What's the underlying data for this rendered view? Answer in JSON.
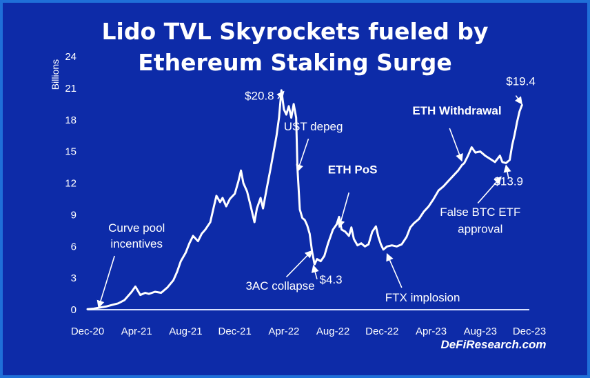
{
  "chart_data": {
    "type": "line",
    "title_lines": [
      "Lido TVL Skyrockets fueled by",
      "Ethereum Staking Surge"
    ],
    "ylabel": "Billions",
    "ylim": [
      0,
      24
    ],
    "yticks": [
      0,
      3,
      6,
      9,
      12,
      15,
      18,
      21,
      24
    ],
    "xticks": [
      "Dec-20",
      "Apr-21",
      "Aug-21",
      "Dec-21",
      "Apr-22",
      "Aug-22",
      "Dec-22",
      "Apr-23",
      "Aug-23",
      "Dec-23"
    ],
    "xlim": [
      0,
      36
    ],
    "grid": false,
    "series": [
      {
        "color": "#ffffff",
        "points": [
          [
            0.0,
            0.05
          ],
          [
            0.5,
            0.1
          ],
          [
            1.0,
            0.2
          ],
          [
            1.5,
            0.3
          ],
          [
            2.0,
            0.45
          ],
          [
            2.5,
            0.6
          ],
          [
            3.0,
            0.9
          ],
          [
            3.3,
            1.3
          ],
          [
            3.6,
            1.7
          ],
          [
            3.9,
            2.2
          ],
          [
            4.1,
            1.8
          ],
          [
            4.3,
            1.4
          ],
          [
            4.7,
            1.6
          ],
          [
            5.0,
            1.5
          ],
          [
            5.5,
            1.7
          ],
          [
            6.0,
            1.6
          ],
          [
            6.5,
            2.1
          ],
          [
            7.0,
            2.8
          ],
          [
            7.3,
            3.6
          ],
          [
            7.6,
            4.6
          ],
          [
            8.0,
            5.4
          ],
          [
            8.3,
            6.3
          ],
          [
            8.6,
            7.0
          ],
          [
            9.0,
            6.5
          ],
          [
            9.3,
            7.2
          ],
          [
            9.6,
            7.6
          ],
          [
            10.0,
            8.3
          ],
          [
            10.3,
            9.8
          ],
          [
            10.5,
            10.8
          ],
          [
            10.8,
            10.2
          ],
          [
            11.0,
            10.6
          ],
          [
            11.3,
            9.8
          ],
          [
            11.6,
            10.5
          ],
          [
            12.0,
            11.0
          ],
          [
            12.3,
            12.2
          ],
          [
            12.5,
            13.2
          ],
          [
            12.7,
            12.0
          ],
          [
            13.0,
            11.2
          ],
          [
            13.3,
            9.8
          ],
          [
            13.6,
            8.3
          ],
          [
            13.8,
            9.6
          ],
          [
            14.1,
            10.6
          ],
          [
            14.3,
            9.6
          ],
          [
            14.6,
            11.5
          ],
          [
            14.9,
            13.3
          ],
          [
            15.2,
            15.2
          ],
          [
            15.4,
            16.5
          ],
          [
            15.6,
            18.2
          ],
          [
            15.8,
            20.8
          ],
          [
            16.0,
            19.0
          ],
          [
            16.2,
            18.5
          ],
          [
            16.4,
            19.3
          ],
          [
            16.6,
            18.2
          ],
          [
            16.8,
            19.5
          ],
          [
            17.0,
            18.2
          ],
          [
            17.1,
            13.5
          ],
          [
            17.3,
            9.5
          ],
          [
            17.5,
            8.7
          ],
          [
            17.7,
            8.5
          ],
          [
            17.9,
            8.0
          ],
          [
            18.1,
            7.2
          ],
          [
            18.3,
            5.5
          ],
          [
            18.5,
            4.3
          ],
          [
            18.7,
            4.8
          ],
          [
            19.0,
            4.6
          ],
          [
            19.3,
            5.1
          ],
          [
            19.6,
            6.3
          ],
          [
            20.0,
            7.6
          ],
          [
            20.3,
            8.1
          ],
          [
            20.5,
            8.8
          ],
          [
            20.7,
            7.6
          ],
          [
            21.0,
            7.4
          ],
          [
            21.3,
            7.0
          ],
          [
            21.5,
            7.8
          ],
          [
            21.7,
            6.7
          ],
          [
            22.0,
            6.1
          ],
          [
            22.3,
            6.3
          ],
          [
            22.6,
            6.0
          ],
          [
            22.9,
            6.2
          ],
          [
            23.2,
            7.4
          ],
          [
            23.5,
            7.9
          ],
          [
            23.7,
            6.9
          ],
          [
            23.9,
            6.2
          ],
          [
            24.1,
            5.7
          ],
          [
            24.4,
            6.0
          ],
          [
            24.8,
            6.1
          ],
          [
            25.2,
            6.0
          ],
          [
            25.6,
            6.2
          ],
          [
            26.0,
            6.9
          ],
          [
            26.3,
            7.8
          ],
          [
            26.6,
            8.2
          ],
          [
            27.0,
            8.6
          ],
          [
            27.4,
            9.3
          ],
          [
            27.8,
            9.8
          ],
          [
            28.2,
            10.5
          ],
          [
            28.6,
            11.3
          ],
          [
            29.0,
            11.7
          ],
          [
            29.4,
            12.2
          ],
          [
            29.8,
            12.7
          ],
          [
            30.2,
            13.2
          ],
          [
            30.5,
            13.7
          ],
          [
            30.7,
            13.9
          ],
          [
            31.0,
            14.6
          ],
          [
            31.3,
            15.4
          ],
          [
            31.6,
            14.9
          ],
          [
            32.0,
            15.0
          ],
          [
            32.4,
            14.6
          ],
          [
            32.8,
            14.3
          ],
          [
            33.2,
            14.0
          ],
          [
            33.6,
            14.6
          ],
          [
            33.8,
            14.0
          ],
          [
            34.1,
            13.9
          ],
          [
            34.4,
            14.2
          ],
          [
            34.6,
            15.6
          ],
          [
            34.8,
            16.6
          ],
          [
            35.0,
            17.8
          ],
          [
            35.2,
            18.8
          ],
          [
            35.4,
            19.4
          ]
        ]
      }
    ],
    "annotations": [
      {
        "text": "Curve pool",
        "x": 4.0,
        "y": 7.4,
        "bold": false,
        "anchor": "middle"
      },
      {
        "text": "incentives",
        "x": 4.0,
        "y": 5.9,
        "bold": false,
        "anchor": "middle"
      },
      {
        "text": "$20.8",
        "x": 15.2,
        "y": 19.9,
        "bold": false,
        "anchor": "end"
      },
      {
        "text": "UST depeg",
        "x": 18.4,
        "y": 17.0,
        "bold": false,
        "anchor": "middle"
      },
      {
        "text": "ETH PoS",
        "x": 21.6,
        "y": 12.9,
        "bold": true,
        "anchor": "middle"
      },
      {
        "text": "3AC collapse",
        "x": 15.7,
        "y": 1.9,
        "bold": false,
        "anchor": "middle"
      },
      {
        "text": "$4.3",
        "x": 18.9,
        "y": 2.5,
        "bold": false,
        "anchor": "start"
      },
      {
        "text": "FTX implosion",
        "x": 27.3,
        "y": 0.8,
        "bold": false,
        "anchor": "middle"
      },
      {
        "text": "ETH Withdrawal",
        "x": 30.1,
        "y": 18.5,
        "bold": true,
        "anchor": "middle"
      },
      {
        "text": "$19.4",
        "x": 35.3,
        "y": 21.3,
        "bold": false,
        "anchor": "middle"
      },
      {
        "text": "$13.9",
        "x": 34.3,
        "y": 11.8,
        "bold": false,
        "anchor": "middle"
      },
      {
        "text": "False BTC ETF",
        "x": 32.0,
        "y": 8.9,
        "bold": false,
        "anchor": "middle"
      },
      {
        "text": "approval",
        "x": 32.0,
        "y": 7.3,
        "bold": false,
        "anchor": "middle"
      }
    ],
    "arrows": [
      {
        "from": [
          2.2,
          5.1
        ],
        "to": [
          0.9,
          0.2
        ]
      },
      {
        "from": [
          15.5,
          20.0
        ],
        "to": [
          16.0,
          20.7
        ]
      },
      {
        "from": [
          18.0,
          16.2
        ],
        "to": [
          17.1,
          13.1
        ]
      },
      {
        "from": [
          16.2,
          3.1
        ],
        "to": [
          18.3,
          5.6
        ]
      },
      {
        "from": [
          18.7,
          2.9
        ],
        "to": [
          18.4,
          4.2
        ]
      },
      {
        "from": [
          21.3,
          11.1
        ],
        "to": [
          20.5,
          7.8
        ]
      },
      {
        "from": [
          25.6,
          2.1
        ],
        "to": [
          24.4,
          5.3
        ]
      },
      {
        "from": [
          29.5,
          17.2
        ],
        "to": [
          30.5,
          14.1
        ]
      },
      {
        "from": [
          34.9,
          20.3
        ],
        "to": [
          35.4,
          19.5
        ]
      },
      {
        "from": [
          34.3,
          12.5
        ],
        "to": [
          34.1,
          13.7
        ]
      },
      {
        "from": [
          31.8,
          10.1
        ],
        "to": [
          33.7,
          12.6
        ]
      }
    ]
  },
  "watermark": "DeFiResearch.com"
}
